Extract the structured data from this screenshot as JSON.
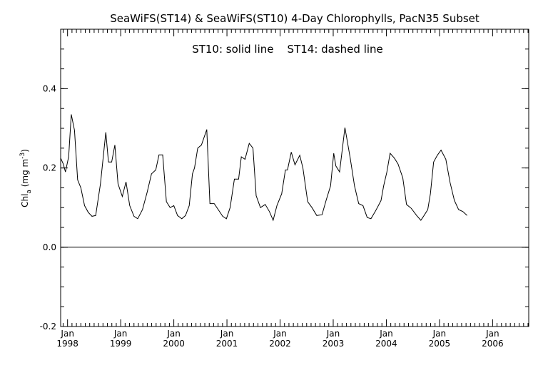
{
  "chart_data": {
    "type": "line",
    "title": "SeaWiFS(ST14) & SeaWiFS(ST10) 4-Day Chlorophylls, PacN35 Subset",
    "annotation": "ST10: solid line    ST14: dashed line",
    "ylabel": "Chl",
    "ylabel_subscript": "a",
    "yunit_prefix": " (mg m",
    "yunit_sup": "-3",
    "yunit_suffix": ")",
    "xlabel": "",
    "ylim": [
      -0.2,
      0.55
    ],
    "xlim": [
      1997.87,
      2006.68
    ],
    "y_ticks": [
      -0.2,
      0.0,
      0.2,
      0.4
    ],
    "y_tick_labels": [
      "-0.2",
      "0.0",
      "0.2",
      "0.4"
    ],
    "x_ticks": [
      {
        "month": "Jan",
        "year": "1998",
        "x": 1998.0
      },
      {
        "month": "Jan",
        "year": "1999",
        "x": 1999.0
      },
      {
        "month": "Jan",
        "year": "2000",
        "x": 2000.0
      },
      {
        "month": "Jan",
        "year": "2001",
        "x": 2001.0
      },
      {
        "month": "Jan",
        "year": "2002",
        "x": 2002.0
      },
      {
        "month": "Jan",
        "year": "2003",
        "x": 2003.0
      },
      {
        "month": "Jan",
        "year": "2004",
        "x": 2004.0
      },
      {
        "month": "Jan",
        "year": "2005",
        "x": 2005.0
      },
      {
        "month": "Jan",
        "year": "2006",
        "x": 2006.0
      }
    ],
    "zero_line": true,
    "grid": false,
    "series": [
      {
        "name": "ST10",
        "style": "solid",
        "color": "#000000",
        "points": [
          [
            1997.87,
            0.225
          ],
          [
            1997.92,
            0.21
          ],
          [
            1997.96,
            0.19
          ],
          [
            1998.02,
            0.228
          ],
          [
            1998.07,
            0.335
          ],
          [
            1998.13,
            0.295
          ],
          [
            1998.19,
            0.17
          ],
          [
            1998.25,
            0.15
          ],
          [
            1998.32,
            0.105
          ],
          [
            1998.39,
            0.088
          ],
          [
            1998.46,
            0.078
          ],
          [
            1998.53,
            0.08
          ],
          [
            1998.62,
            0.16
          ],
          [
            1998.72,
            0.29
          ],
          [
            1998.77,
            0.215
          ],
          [
            1998.83,
            0.215
          ],
          [
            1998.89,
            0.258
          ],
          [
            1998.95,
            0.16
          ],
          [
            1999.03,
            0.128
          ],
          [
            1999.1,
            0.165
          ],
          [
            1999.17,
            0.105
          ],
          [
            1999.25,
            0.078
          ],
          [
            1999.32,
            0.072
          ],
          [
            1999.41,
            0.095
          ],
          [
            1999.5,
            0.14
          ],
          [
            1999.58,
            0.185
          ],
          [
            1999.66,
            0.195
          ],
          [
            1999.72,
            0.233
          ],
          [
            1999.79,
            0.233
          ],
          [
            1999.86,
            0.115
          ],
          [
            1999.93,
            0.1
          ],
          [
            2000.0,
            0.105
          ],
          [
            2000.07,
            0.08
          ],
          [
            2000.15,
            0.072
          ],
          [
            2000.22,
            0.08
          ],
          [
            2000.29,
            0.105
          ],
          [
            2000.35,
            0.185
          ],
          [
            2000.39,
            0.2
          ],
          [
            2000.45,
            0.25
          ],
          [
            2000.52,
            0.258
          ],
          [
            2000.62,
            0.297
          ],
          [
            2000.68,
            0.11
          ],
          [
            2000.76,
            0.11
          ],
          [
            2000.85,
            0.092
          ],
          [
            2000.92,
            0.078
          ],
          [
            2000.99,
            0.072
          ],
          [
            2001.06,
            0.1
          ],
          [
            2001.14,
            0.172
          ],
          [
            2001.22,
            0.172
          ],
          [
            2001.27,
            0.228
          ],
          [
            2001.34,
            0.222
          ],
          [
            2001.42,
            0.262
          ],
          [
            2001.49,
            0.25
          ],
          [
            2001.55,
            0.13
          ],
          [
            2001.63,
            0.1
          ],
          [
            2001.72,
            0.108
          ],
          [
            2001.8,
            0.09
          ],
          [
            2001.87,
            0.068
          ],
          [
            2001.94,
            0.105
          ],
          [
            2002.03,
            0.135
          ],
          [
            2002.1,
            0.195
          ],
          [
            2002.14,
            0.195
          ],
          [
            2002.21,
            0.24
          ],
          [
            2002.28,
            0.208
          ],
          [
            2002.37,
            0.232
          ],
          [
            2002.43,
            0.2
          ],
          [
            2002.52,
            0.115
          ],
          [
            2002.6,
            0.1
          ],
          [
            2002.69,
            0.08
          ],
          [
            2002.79,
            0.082
          ],
          [
            2002.87,
            0.12
          ],
          [
            2002.95,
            0.155
          ],
          [
            2003.01,
            0.237
          ],
          [
            2003.05,
            0.205
          ],
          [
            2003.12,
            0.19
          ],
          [
            2003.22,
            0.302
          ],
          [
            2003.32,
            0.225
          ],
          [
            2003.4,
            0.155
          ],
          [
            2003.48,
            0.11
          ],
          [
            2003.56,
            0.105
          ],
          [
            2003.64,
            0.075
          ],
          [
            2003.71,
            0.072
          ],
          [
            2003.79,
            0.09
          ],
          [
            2003.85,
            0.105
          ],
          [
            2003.9,
            0.118
          ],
          [
            2003.95,
            0.155
          ],
          [
            2004.01,
            0.19
          ],
          [
            2004.07,
            0.237
          ],
          [
            2004.15,
            0.225
          ],
          [
            2004.22,
            0.21
          ],
          [
            2004.31,
            0.175
          ],
          [
            2004.38,
            0.108
          ],
          [
            2004.47,
            0.098
          ],
          [
            2004.57,
            0.08
          ],
          [
            2004.65,
            0.068
          ],
          [
            2004.71,
            0.08
          ],
          [
            2004.78,
            0.095
          ],
          [
            2004.83,
            0.135
          ],
          [
            2004.89,
            0.215
          ],
          [
            2004.96,
            0.232
          ],
          [
            2005.03,
            0.245
          ],
          [
            2005.12,
            0.222
          ],
          [
            2005.2,
            0.163
          ],
          [
            2005.28,
            0.118
          ],
          [
            2005.36,
            0.095
          ],
          [
            2005.44,
            0.09
          ],
          [
            2005.52,
            0.08
          ]
        ]
      }
    ]
  }
}
